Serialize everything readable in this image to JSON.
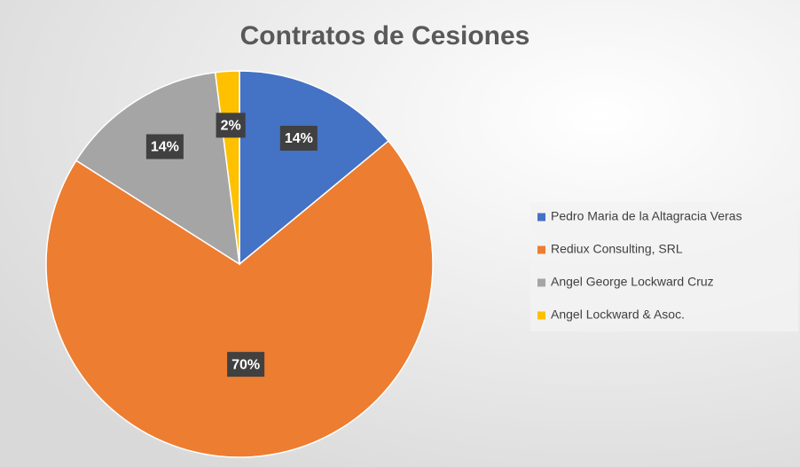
{
  "chart_data": {
    "type": "pie",
    "title": "Contratos de Cesiones",
    "categories": [
      "Pedro Maria de la Altagracia Veras",
      "Rediux Consulting, SRL",
      "Angel George Lockward Cruz",
      "Angel Lockward & Asoc."
    ],
    "values": [
      14,
      70,
      14,
      2
    ],
    "value_labels": [
      "14%",
      "70%",
      "14%",
      "2%"
    ],
    "colors": [
      "#4472c4",
      "#ed7d31",
      "#a5a5a5",
      "#ffc000"
    ],
    "legend": "right"
  }
}
